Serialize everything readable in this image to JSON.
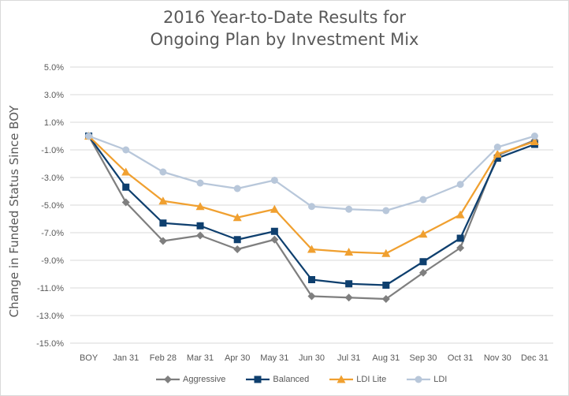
{
  "chart_data": {
    "type": "line",
    "title_line1": "2016 Year-to-Date Results for",
    "title_line2": "Ongoing Plan by Investment Mix",
    "xlabel": "",
    "ylabel": "Change in Funded Status Since BOY",
    "ylim": [
      -15.0,
      5.0
    ],
    "yticks": [
      "5.0%",
      "3.0%",
      "1.0%",
      "-1.0%",
      "-3.0%",
      "-5.0%",
      "-7.0%",
      "-9.0%",
      "-11.0%",
      "-13.0%",
      "-15.0%"
    ],
    "ytick_values": [
      5,
      3,
      1,
      -1,
      -3,
      -5,
      -7,
      -9,
      -11,
      -13,
      -15
    ],
    "grid": "horizontal",
    "legend_position": "bottom",
    "categories": [
      "BOY",
      "Jan 31",
      "Feb 28",
      "Mar 31",
      "Apr 30",
      "May 31",
      "Jun 30",
      "Jul 31",
      "Aug 31",
      "Sep 30",
      "Oct 31",
      "Nov 30",
      "Dec 31"
    ],
    "series": [
      {
        "name": "Aggressive",
        "color": "#7f7f7f",
        "marker": "diamond",
        "values": [
          0.0,
          -4.8,
          -7.6,
          -7.2,
          -8.2,
          -7.5,
          -11.6,
          -11.7,
          -11.8,
          -9.9,
          -8.1,
          -1.4,
          -0.3
        ]
      },
      {
        "name": "Balanced",
        "color": "#0e3f6e",
        "marker": "square",
        "values": [
          0.0,
          -3.7,
          -6.3,
          -6.5,
          -7.5,
          -6.9,
          -10.4,
          -10.7,
          -10.8,
          -9.1,
          -7.4,
          -1.6,
          -0.6
        ]
      },
      {
        "name": "LDI Lite",
        "color": "#f0a030",
        "marker": "triangle",
        "values": [
          0.0,
          -2.6,
          -4.7,
          -5.1,
          -5.9,
          -5.3,
          -8.2,
          -8.4,
          -8.5,
          -7.1,
          -5.7,
          -1.3,
          -0.4
        ]
      },
      {
        "name": "LDI",
        "color": "#b8c7da",
        "marker": "circle",
        "values": [
          0.0,
          -1.0,
          -2.6,
          -3.4,
          -3.8,
          -3.2,
          -5.1,
          -5.3,
          -5.4,
          -4.6,
          -3.5,
          -0.8,
          0.0
        ]
      }
    ]
  }
}
